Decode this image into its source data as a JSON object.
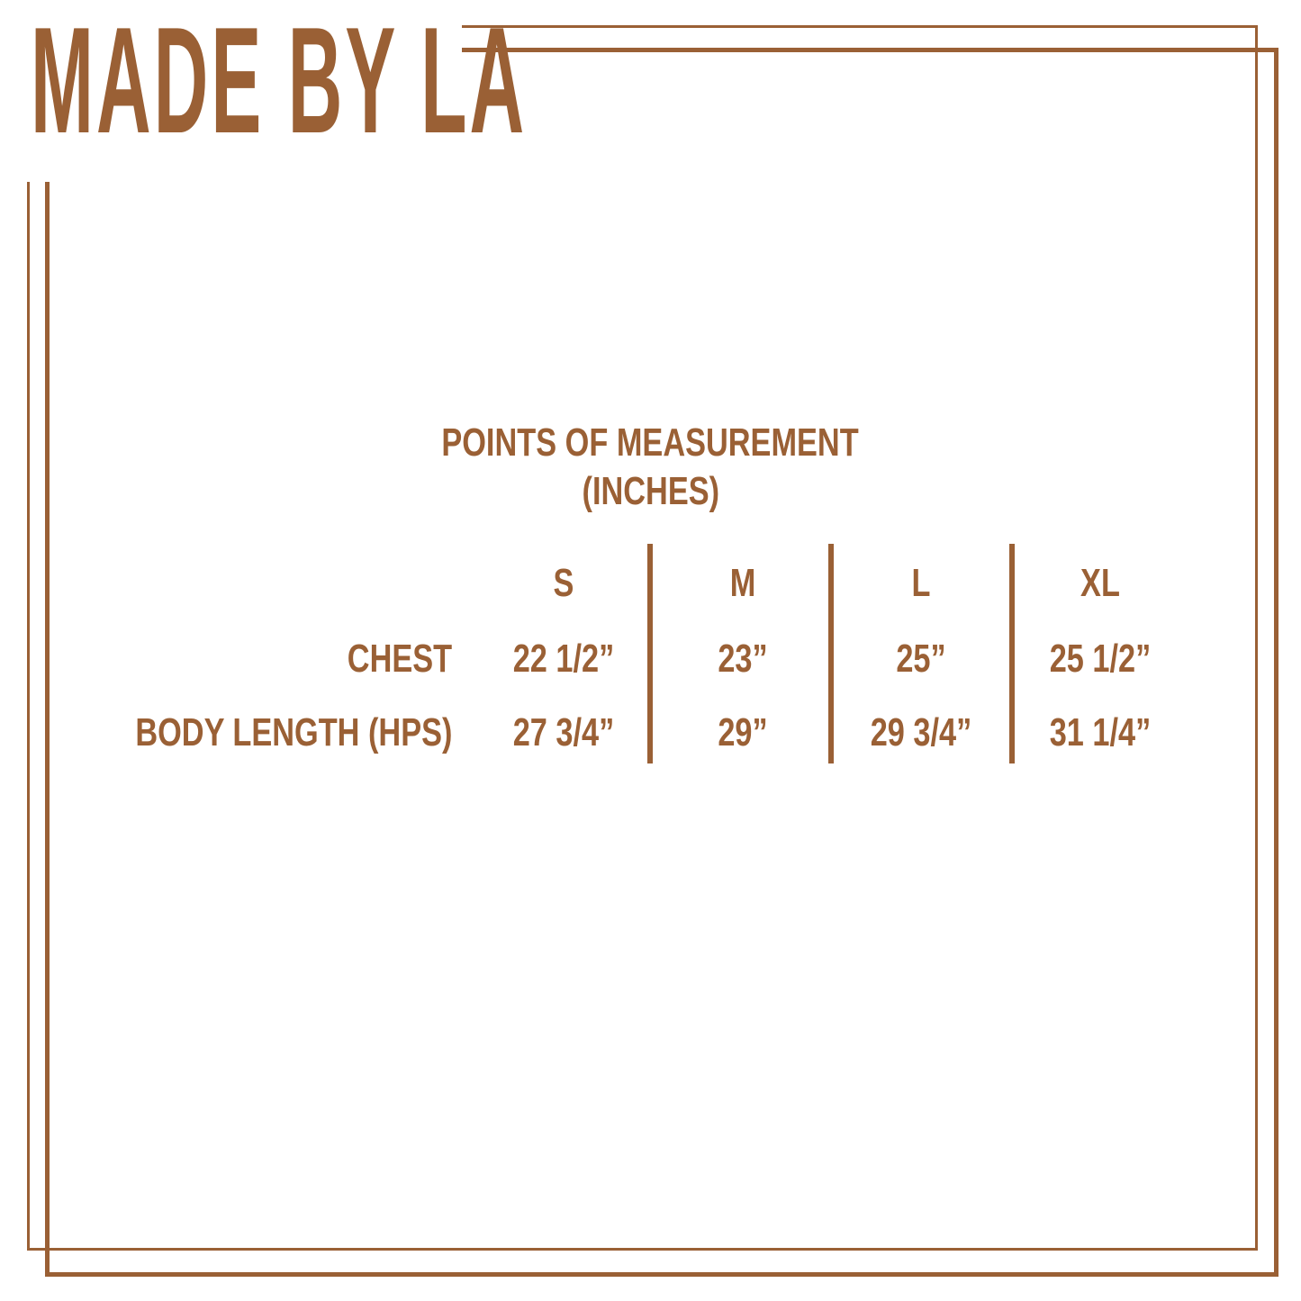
{
  "brand": {
    "logo_text": "MADE BY LA",
    "color": "#9a6035",
    "logo_icon": "palm-tree-icon"
  },
  "title": {
    "line1": "POINTS OF MEASUREMENT",
    "line2": "(INCHES)"
  },
  "table": {
    "sizes": [
      "S",
      "M",
      "L",
      "XL"
    ],
    "rows": [
      {
        "label": "CHEST",
        "values": [
          "22 1/2”",
          "23”",
          "25”",
          "25 1/2”"
        ]
      },
      {
        "label": "BODY LENGTH (HPS)",
        "values": [
          "27 3/4”",
          "29”",
          "29 3/4”",
          "31 1/4”"
        ]
      }
    ]
  }
}
